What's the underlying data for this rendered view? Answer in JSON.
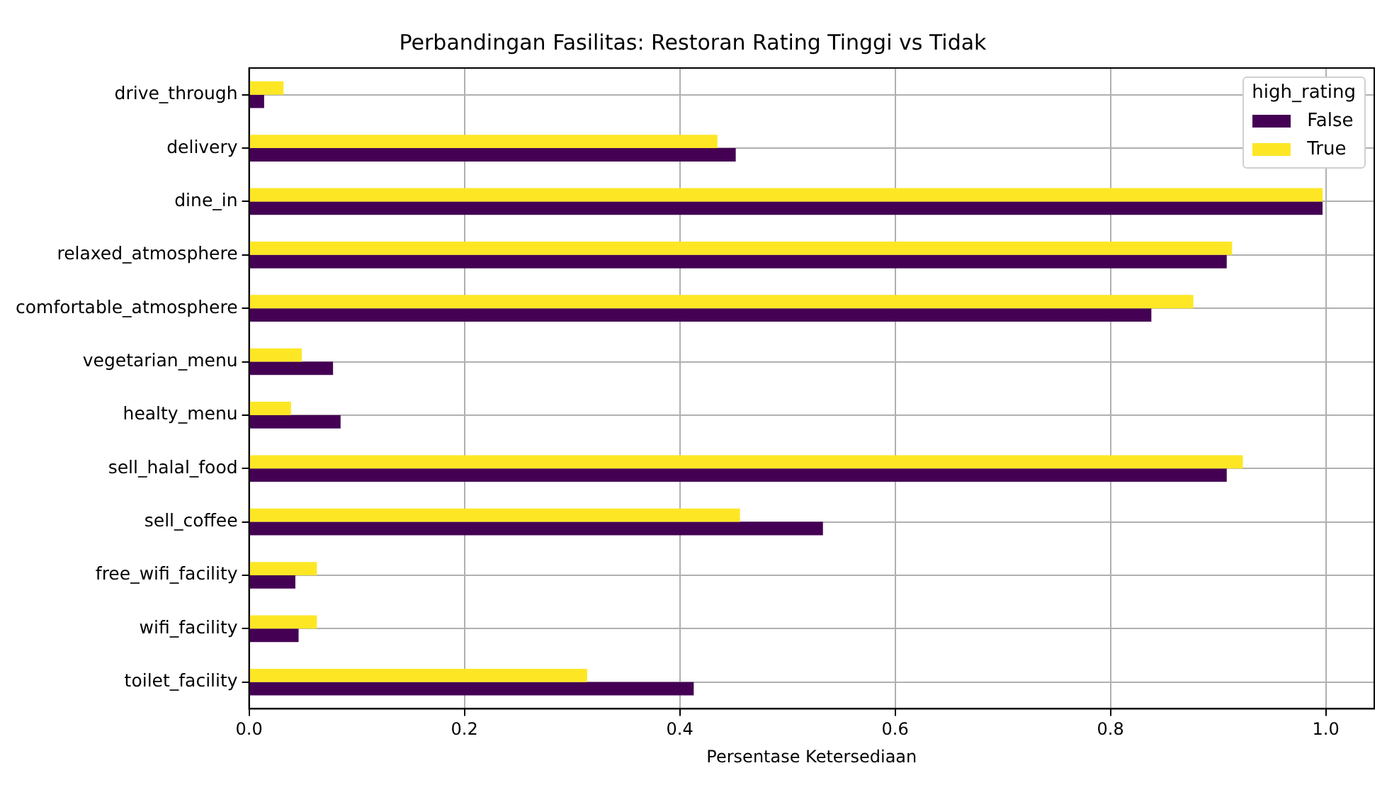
{
  "chart_data": {
    "type": "bar",
    "orientation": "horizontal",
    "title": "Perbandingan Fasilitas: Restoran Rating Tinggi vs Tidak",
    "xlabel": "Persentase Ketersediaan",
    "legend_title": "high_rating",
    "legend": "top right",
    "grid": true,
    "categories": [
      "drive_through",
      "delivery",
      "dine_in",
      "relaxed_atmosphere",
      "comfortable_atmosphere",
      "vegetarian_menu",
      "healty_menu",
      "sell_halal_food",
      "sell_coffee",
      "free_wifi_facility",
      "wifi_facility",
      "toilet_facility"
    ],
    "series": [
      {
        "name": "False",
        "color": "#440154",
        "values": [
          0.014,
          0.452,
          0.997,
          0.908,
          0.838,
          0.078,
          0.085,
          0.908,
          0.533,
          0.043,
          0.046,
          0.413
        ]
      },
      {
        "name": "True",
        "color": "#fde725",
        "values": [
          0.032,
          0.435,
          0.997,
          0.913,
          0.877,
          0.049,
          0.039,
          0.923,
          0.456,
          0.063,
          0.063,
          0.314
        ]
      }
    ],
    "xlim": [
      0,
      1.045
    ],
    "xticks": [
      {
        "value": 0,
        "label": "0.0"
      },
      0.2,
      0.4,
      0.6,
      0.8,
      {
        "value": 1,
        "label": "1.0"
      }
    ]
  }
}
